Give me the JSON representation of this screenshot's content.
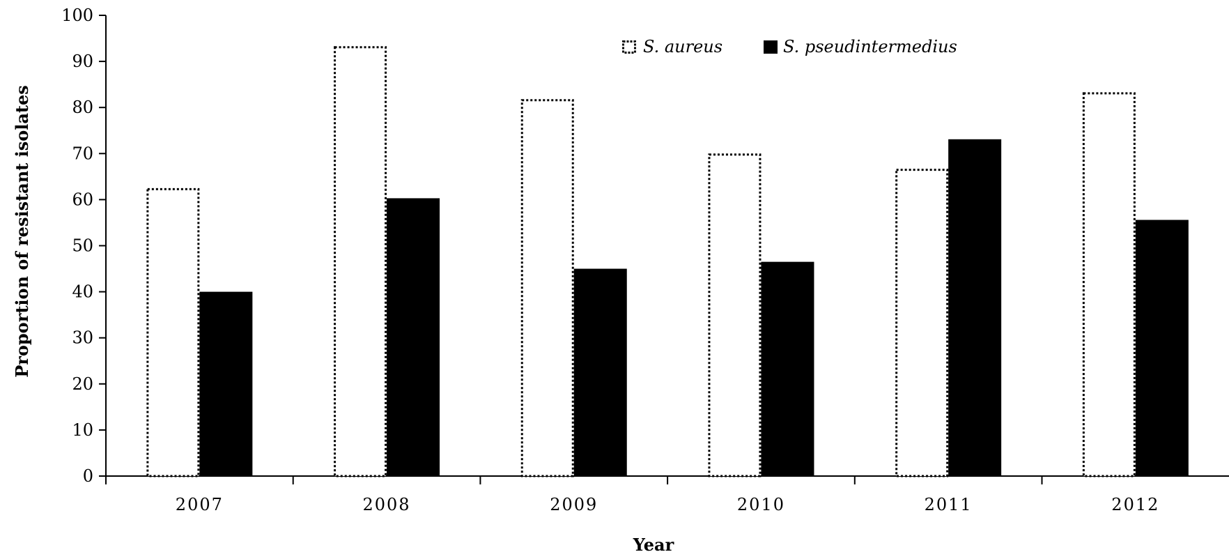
{
  "chart_data": {
    "type": "bar",
    "title": "",
    "xlabel": "Year",
    "ylabel": "Proportion of resistant isolates",
    "categories": [
      "2007",
      "2008",
      "2009",
      "2010",
      "2011",
      "2012"
    ],
    "series": [
      {
        "name": "S. aureus",
        "values": [
          62.5,
          93.3,
          81.8,
          70.0,
          66.7,
          83.3
        ],
        "style": "dotted-outline",
        "color": "#000000"
      },
      {
        "name": "S. pseudintermedius",
        "values": [
          40.0,
          60.3,
          45.0,
          46.5,
          73.1,
          55.6
        ],
        "style": "solid",
        "color": "#000000"
      }
    ],
    "ylim": [
      0,
      100
    ],
    "yticks": [
      0,
      10,
      20,
      30,
      40,
      50,
      60,
      70,
      80,
      90,
      100
    ],
    "grid": false,
    "legend_position": "top-center"
  }
}
